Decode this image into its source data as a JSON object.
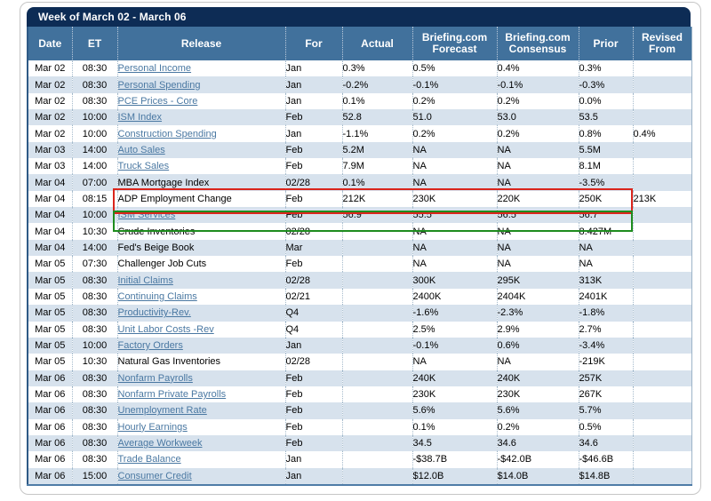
{
  "title": "Week of March 02 - March 06",
  "columns": [
    "Date",
    "ET",
    "Release",
    "For",
    "Actual",
    "Briefing.com Forecast",
    "Briefing.com Consensus",
    "Prior",
    "Revised From"
  ],
  "colors": {
    "title_bar": "#0d2c55",
    "header_row": "#41719c",
    "alt_row": "#d7e2ed",
    "link": "#4a78a2",
    "adp_highlight": "#da251c",
    "ism_highlight": "#1e8c1e"
  },
  "highlights": {
    "adp_box": {
      "color": "#da251c",
      "target": "ADP Employment Change row"
    },
    "ism_box": {
      "color": "#1e8c1e",
      "target": "ISM Services row"
    }
  },
  "rows": [
    {
      "date": "Mar 02",
      "et": "08:30",
      "release": "Personal Income",
      "link": true,
      "for": "Jan",
      "actual": "0.3%",
      "forecast": "0.5%",
      "consensus": "0.4%",
      "prior": "0.3%",
      "revised": ""
    },
    {
      "date": "Mar 02",
      "et": "08:30",
      "release": "Personal Spending",
      "link": true,
      "for": "Jan",
      "actual": "-0.2%",
      "forecast": "-0.1%",
      "consensus": "-0.1%",
      "prior": "-0.3%",
      "revised": ""
    },
    {
      "date": "Mar 02",
      "et": "08:30",
      "release": "PCE Prices - Core",
      "link": true,
      "for": "Jan",
      "actual": "0.1%",
      "forecast": "0.2%",
      "consensus": "0.2%",
      "prior": "0.0%",
      "revised": ""
    },
    {
      "date": "Mar 02",
      "et": "10:00",
      "release": "ISM Index",
      "link": true,
      "for": "Feb",
      "actual": "52.8",
      "forecast": "51.0",
      "consensus": "53.0",
      "prior": "53.5",
      "revised": ""
    },
    {
      "date": "Mar 02",
      "et": "10:00",
      "release": "Construction Spending",
      "link": true,
      "for": "Jan",
      "actual": "-1.1%",
      "forecast": "0.2%",
      "consensus": "0.2%",
      "prior": "0.8%",
      "revised": "0.4%"
    },
    {
      "date": "Mar 03",
      "et": "14:00",
      "release": "Auto Sales",
      "link": true,
      "for": "Feb",
      "actual": "5.2M",
      "forecast": "NA",
      "consensus": "NA",
      "prior": "5.5M",
      "revised": ""
    },
    {
      "date": "Mar 03",
      "et": "14:00",
      "release": "Truck Sales",
      "link": true,
      "for": "Feb",
      "actual": "7.9M",
      "forecast": "NA",
      "consensus": "NA",
      "prior": "8.1M",
      "revised": ""
    },
    {
      "date": "Mar 04",
      "et": "07:00",
      "release": "MBA Mortgage Index",
      "link": false,
      "for": "02/28",
      "actual": "0.1%",
      "forecast": "NA",
      "consensus": "NA",
      "prior": "-3.5%",
      "revised": ""
    },
    {
      "date": "Mar 04",
      "et": "08:15",
      "release": "ADP Employment Change",
      "link": false,
      "for": "Feb",
      "actual": "212K",
      "forecast": "230K",
      "consensus": "220K",
      "prior": "250K",
      "revised": "213K"
    },
    {
      "date": "Mar 04",
      "et": "10:00",
      "release": "ISM Services",
      "link": true,
      "for": "Feb",
      "actual": "56.9",
      "forecast": "55.5",
      "consensus": "56.5",
      "prior": "56.7",
      "revised": ""
    },
    {
      "date": "Mar 04",
      "et": "10:30",
      "release": "Crude Inventories",
      "link": false,
      "for": "02/28",
      "actual": "",
      "forecast": "NA",
      "consensus": "NA",
      "prior": "8.427M",
      "revised": ""
    },
    {
      "date": "Mar 04",
      "et": "14:00",
      "release": "Fed's Beige Book",
      "link": false,
      "for": "Mar",
      "actual": "",
      "forecast": "NA",
      "consensus": "NA",
      "prior": "NA",
      "revised": ""
    },
    {
      "date": "Mar 05",
      "et": "07:30",
      "release": "Challenger Job Cuts",
      "link": false,
      "for": "Feb",
      "actual": "",
      "forecast": "NA",
      "consensus": "NA",
      "prior": "NA",
      "revised": ""
    },
    {
      "date": "Mar 05",
      "et": "08:30",
      "release": "Initial Claims",
      "link": true,
      "for": "02/28",
      "actual": "",
      "forecast": "300K",
      "consensus": "295K",
      "prior": "313K",
      "revised": ""
    },
    {
      "date": "Mar 05",
      "et": "08:30",
      "release": "Continuing Claims",
      "link": true,
      "for": "02/21",
      "actual": "",
      "forecast": "2400K",
      "consensus": "2404K",
      "prior": "2401K",
      "revised": ""
    },
    {
      "date": "Mar 05",
      "et": "08:30",
      "release": "Productivity-Rev.",
      "link": true,
      "for": "Q4",
      "actual": "",
      "forecast": "-1.6%",
      "consensus": "-2.3%",
      "prior": "-1.8%",
      "revised": ""
    },
    {
      "date": "Mar 05",
      "et": "08:30",
      "release": "Unit Labor Costs -Rev",
      "link": true,
      "for": "Q4",
      "actual": "",
      "forecast": "2.5%",
      "consensus": "2.9%",
      "prior": "2.7%",
      "revised": ""
    },
    {
      "date": "Mar 05",
      "et": "10:00",
      "release": "Factory Orders",
      "link": true,
      "for": "Jan",
      "actual": "",
      "forecast": "-0.1%",
      "consensus": "0.6%",
      "prior": "-3.4%",
      "revised": ""
    },
    {
      "date": "Mar 05",
      "et": "10:30",
      "release": "Natural Gas Inventories",
      "link": false,
      "for": "02/28",
      "actual": "",
      "forecast": "NA",
      "consensus": "NA",
      "prior": "-219K",
      "revised": ""
    },
    {
      "date": "Mar 06",
      "et": "08:30",
      "release": "Nonfarm Payrolls",
      "link": true,
      "for": "Feb",
      "actual": "",
      "forecast": "240K",
      "consensus": "240K",
      "prior": "257K",
      "revised": ""
    },
    {
      "date": "Mar 06",
      "et": "08:30",
      "release": "Nonfarm Private Payrolls",
      "link": true,
      "for": "Feb",
      "actual": "",
      "forecast": "230K",
      "consensus": "230K",
      "prior": "267K",
      "revised": ""
    },
    {
      "date": "Mar 06",
      "et": "08:30",
      "release": "Unemployment Rate",
      "link": true,
      "for": "Feb",
      "actual": "",
      "forecast": "5.6%",
      "consensus": "5.6%",
      "prior": "5.7%",
      "revised": ""
    },
    {
      "date": "Mar 06",
      "et": "08:30",
      "release": "Hourly Earnings",
      "link": true,
      "for": "Feb",
      "actual": "",
      "forecast": "0.1%",
      "consensus": "0.2%",
      "prior": "0.5%",
      "revised": ""
    },
    {
      "date": "Mar 06",
      "et": "08:30",
      "release": "Average Workweek",
      "link": true,
      "for": "Feb",
      "actual": "",
      "forecast": "34.5",
      "consensus": "34.6",
      "prior": "34.6",
      "revised": ""
    },
    {
      "date": "Mar 06",
      "et": "08:30",
      "release": "Trade Balance",
      "link": true,
      "for": "Jan",
      "actual": "",
      "forecast": "-$38.7B",
      "consensus": "-$42.0B",
      "prior": "-$46.6B",
      "revised": ""
    },
    {
      "date": "Mar 06",
      "et": "15:00",
      "release": "Consumer Credit",
      "link": true,
      "for": "Jan",
      "actual": "",
      "forecast": "$12.0B",
      "consensus": "$14.0B",
      "prior": "$14.8B",
      "revised": ""
    }
  ]
}
